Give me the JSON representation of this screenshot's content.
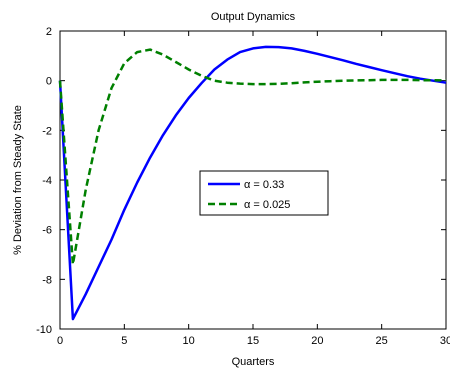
{
  "chart_data": {
    "type": "line",
    "title": "Output Dynamics",
    "xlabel": "Quarters",
    "ylabel": "% Deviation from Steady State",
    "xlim": [
      0,
      30
    ],
    "ylim": [
      -10,
      2
    ],
    "xticks": [
      0,
      5,
      10,
      15,
      20,
      25,
      30
    ],
    "yticks": [
      2,
      0,
      -2,
      -4,
      -6,
      -8,
      -10
    ],
    "grid": false,
    "legend_position": "center-right",
    "series": [
      {
        "name": "α = 0.33",
        "color": "#0000ff",
        "dash": "solid",
        "x": [
          0,
          1,
          2,
          3,
          4,
          5,
          6,
          7,
          8,
          9,
          10,
          11,
          12,
          13,
          14,
          15,
          16,
          17,
          18,
          19,
          20,
          21,
          22,
          23,
          24,
          25,
          26,
          27,
          28,
          29,
          30
        ],
        "y": [
          0,
          -9.6,
          -8.6,
          -7.5,
          -6.4,
          -5.2,
          -4.1,
          -3.1,
          -2.2,
          -1.4,
          -0.7,
          -0.1,
          0.45,
          0.85,
          1.15,
          1.3,
          1.36,
          1.35,
          1.3,
          1.2,
          1.08,
          0.95,
          0.82,
          0.68,
          0.55,
          0.42,
          0.3,
          0.18,
          0.08,
          0.0,
          -0.08
        ]
      },
      {
        "name": "α = 0.025",
        "color": "#008000",
        "dash": "dashed",
        "x": [
          0,
          1,
          2,
          3,
          4,
          5,
          6,
          7,
          8,
          9,
          10,
          11,
          12,
          13,
          14,
          15,
          16,
          17,
          18,
          19,
          20,
          21,
          22,
          23,
          24,
          25,
          26,
          27,
          28,
          29,
          30
        ],
        "y": [
          0,
          -7.4,
          -4.4,
          -2.0,
          -0.3,
          0.7,
          1.15,
          1.25,
          1.05,
          0.75,
          0.45,
          0.2,
          0.0,
          -0.08,
          -0.12,
          -0.14,
          -0.14,
          -0.13,
          -0.1,
          -0.07,
          -0.04,
          -0.02,
          0.0,
          0.01,
          0.02,
          0.03,
          0.03,
          0.03,
          0.02,
          0.02,
          0.01
        ]
      }
    ]
  }
}
